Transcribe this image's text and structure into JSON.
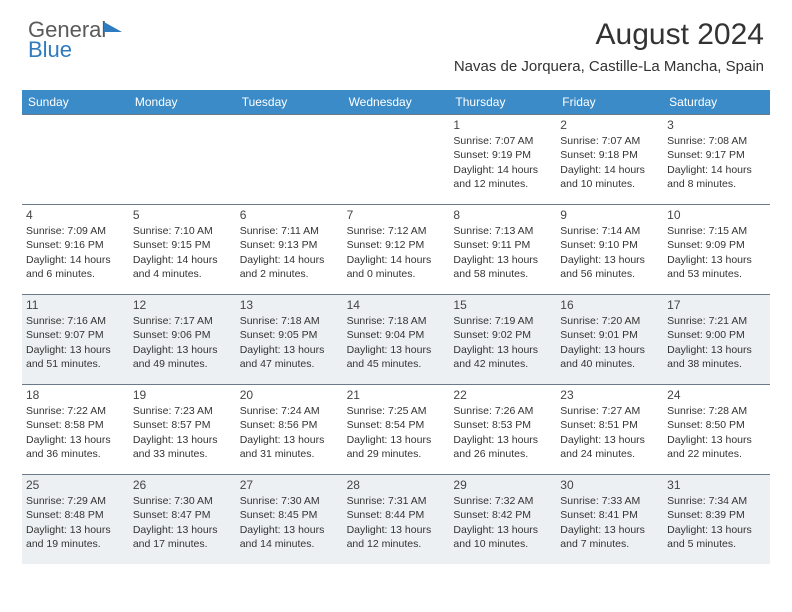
{
  "logo": {
    "part1": "General",
    "part2": "Blue"
  },
  "header": {
    "month_title": "August 2024",
    "location": "Navas de Jorquera, Castille-La Mancha, Spain"
  },
  "style": {
    "header_bg": "#3b8bc8",
    "header_fg": "#ffffff",
    "shade_bg": "#edf0f2",
    "border_color": "#6a7a88",
    "title_fontsize": 30,
    "location_fontsize": 15,
    "weekday_fontsize": 12,
    "cell_fontsize": 10.5,
    "daynum_fontsize": 12
  },
  "weekdays": [
    "Sunday",
    "Monday",
    "Tuesday",
    "Wednesday",
    "Thursday",
    "Friday",
    "Saturday"
  ],
  "days": [
    {
      "n": "",
      "sr": "",
      "ss": "",
      "dl": ""
    },
    {
      "n": "",
      "sr": "",
      "ss": "",
      "dl": ""
    },
    {
      "n": "",
      "sr": "",
      "ss": "",
      "dl": ""
    },
    {
      "n": "",
      "sr": "",
      "ss": "",
      "dl": ""
    },
    {
      "n": "1",
      "sr": "Sunrise: 7:07 AM",
      "ss": "Sunset: 9:19 PM",
      "dl": "Daylight: 14 hours and 12 minutes."
    },
    {
      "n": "2",
      "sr": "Sunrise: 7:07 AM",
      "ss": "Sunset: 9:18 PM",
      "dl": "Daylight: 14 hours and 10 minutes."
    },
    {
      "n": "3",
      "sr": "Sunrise: 7:08 AM",
      "ss": "Sunset: 9:17 PM",
      "dl": "Daylight: 14 hours and 8 minutes."
    },
    {
      "n": "4",
      "sr": "Sunrise: 7:09 AM",
      "ss": "Sunset: 9:16 PM",
      "dl": "Daylight: 14 hours and 6 minutes."
    },
    {
      "n": "5",
      "sr": "Sunrise: 7:10 AM",
      "ss": "Sunset: 9:15 PM",
      "dl": "Daylight: 14 hours and 4 minutes."
    },
    {
      "n": "6",
      "sr": "Sunrise: 7:11 AM",
      "ss": "Sunset: 9:13 PM",
      "dl": "Daylight: 14 hours and 2 minutes."
    },
    {
      "n": "7",
      "sr": "Sunrise: 7:12 AM",
      "ss": "Sunset: 9:12 PM",
      "dl": "Daylight: 14 hours and 0 minutes."
    },
    {
      "n": "8",
      "sr": "Sunrise: 7:13 AM",
      "ss": "Sunset: 9:11 PM",
      "dl": "Daylight: 13 hours and 58 minutes."
    },
    {
      "n": "9",
      "sr": "Sunrise: 7:14 AM",
      "ss": "Sunset: 9:10 PM",
      "dl": "Daylight: 13 hours and 56 minutes."
    },
    {
      "n": "10",
      "sr": "Sunrise: 7:15 AM",
      "ss": "Sunset: 9:09 PM",
      "dl": "Daylight: 13 hours and 53 minutes."
    },
    {
      "n": "11",
      "sr": "Sunrise: 7:16 AM",
      "ss": "Sunset: 9:07 PM",
      "dl": "Daylight: 13 hours and 51 minutes."
    },
    {
      "n": "12",
      "sr": "Sunrise: 7:17 AM",
      "ss": "Sunset: 9:06 PM",
      "dl": "Daylight: 13 hours and 49 minutes."
    },
    {
      "n": "13",
      "sr": "Sunrise: 7:18 AM",
      "ss": "Sunset: 9:05 PM",
      "dl": "Daylight: 13 hours and 47 minutes."
    },
    {
      "n": "14",
      "sr": "Sunrise: 7:18 AM",
      "ss": "Sunset: 9:04 PM",
      "dl": "Daylight: 13 hours and 45 minutes."
    },
    {
      "n": "15",
      "sr": "Sunrise: 7:19 AM",
      "ss": "Sunset: 9:02 PM",
      "dl": "Daylight: 13 hours and 42 minutes."
    },
    {
      "n": "16",
      "sr": "Sunrise: 7:20 AM",
      "ss": "Sunset: 9:01 PM",
      "dl": "Daylight: 13 hours and 40 minutes."
    },
    {
      "n": "17",
      "sr": "Sunrise: 7:21 AM",
      "ss": "Sunset: 9:00 PM",
      "dl": "Daylight: 13 hours and 38 minutes."
    },
    {
      "n": "18",
      "sr": "Sunrise: 7:22 AM",
      "ss": "Sunset: 8:58 PM",
      "dl": "Daylight: 13 hours and 36 minutes."
    },
    {
      "n": "19",
      "sr": "Sunrise: 7:23 AM",
      "ss": "Sunset: 8:57 PM",
      "dl": "Daylight: 13 hours and 33 minutes."
    },
    {
      "n": "20",
      "sr": "Sunrise: 7:24 AM",
      "ss": "Sunset: 8:56 PM",
      "dl": "Daylight: 13 hours and 31 minutes."
    },
    {
      "n": "21",
      "sr": "Sunrise: 7:25 AM",
      "ss": "Sunset: 8:54 PM",
      "dl": "Daylight: 13 hours and 29 minutes."
    },
    {
      "n": "22",
      "sr": "Sunrise: 7:26 AM",
      "ss": "Sunset: 8:53 PM",
      "dl": "Daylight: 13 hours and 26 minutes."
    },
    {
      "n": "23",
      "sr": "Sunrise: 7:27 AM",
      "ss": "Sunset: 8:51 PM",
      "dl": "Daylight: 13 hours and 24 minutes."
    },
    {
      "n": "24",
      "sr": "Sunrise: 7:28 AM",
      "ss": "Sunset: 8:50 PM",
      "dl": "Daylight: 13 hours and 22 minutes."
    },
    {
      "n": "25",
      "sr": "Sunrise: 7:29 AM",
      "ss": "Sunset: 8:48 PM",
      "dl": "Daylight: 13 hours and 19 minutes."
    },
    {
      "n": "26",
      "sr": "Sunrise: 7:30 AM",
      "ss": "Sunset: 8:47 PM",
      "dl": "Daylight: 13 hours and 17 minutes."
    },
    {
      "n": "27",
      "sr": "Sunrise: 7:30 AM",
      "ss": "Sunset: 8:45 PM",
      "dl": "Daylight: 13 hours and 14 minutes."
    },
    {
      "n": "28",
      "sr": "Sunrise: 7:31 AM",
      "ss": "Sunset: 8:44 PM",
      "dl": "Daylight: 13 hours and 12 minutes."
    },
    {
      "n": "29",
      "sr": "Sunrise: 7:32 AM",
      "ss": "Sunset: 8:42 PM",
      "dl": "Daylight: 13 hours and 10 minutes."
    },
    {
      "n": "30",
      "sr": "Sunrise: 7:33 AM",
      "ss": "Sunset: 8:41 PM",
      "dl": "Daylight: 13 hours and 7 minutes."
    },
    {
      "n": "31",
      "sr": "Sunrise: 7:34 AM",
      "ss": "Sunset: 8:39 PM",
      "dl": "Daylight: 13 hours and 5 minutes."
    }
  ]
}
